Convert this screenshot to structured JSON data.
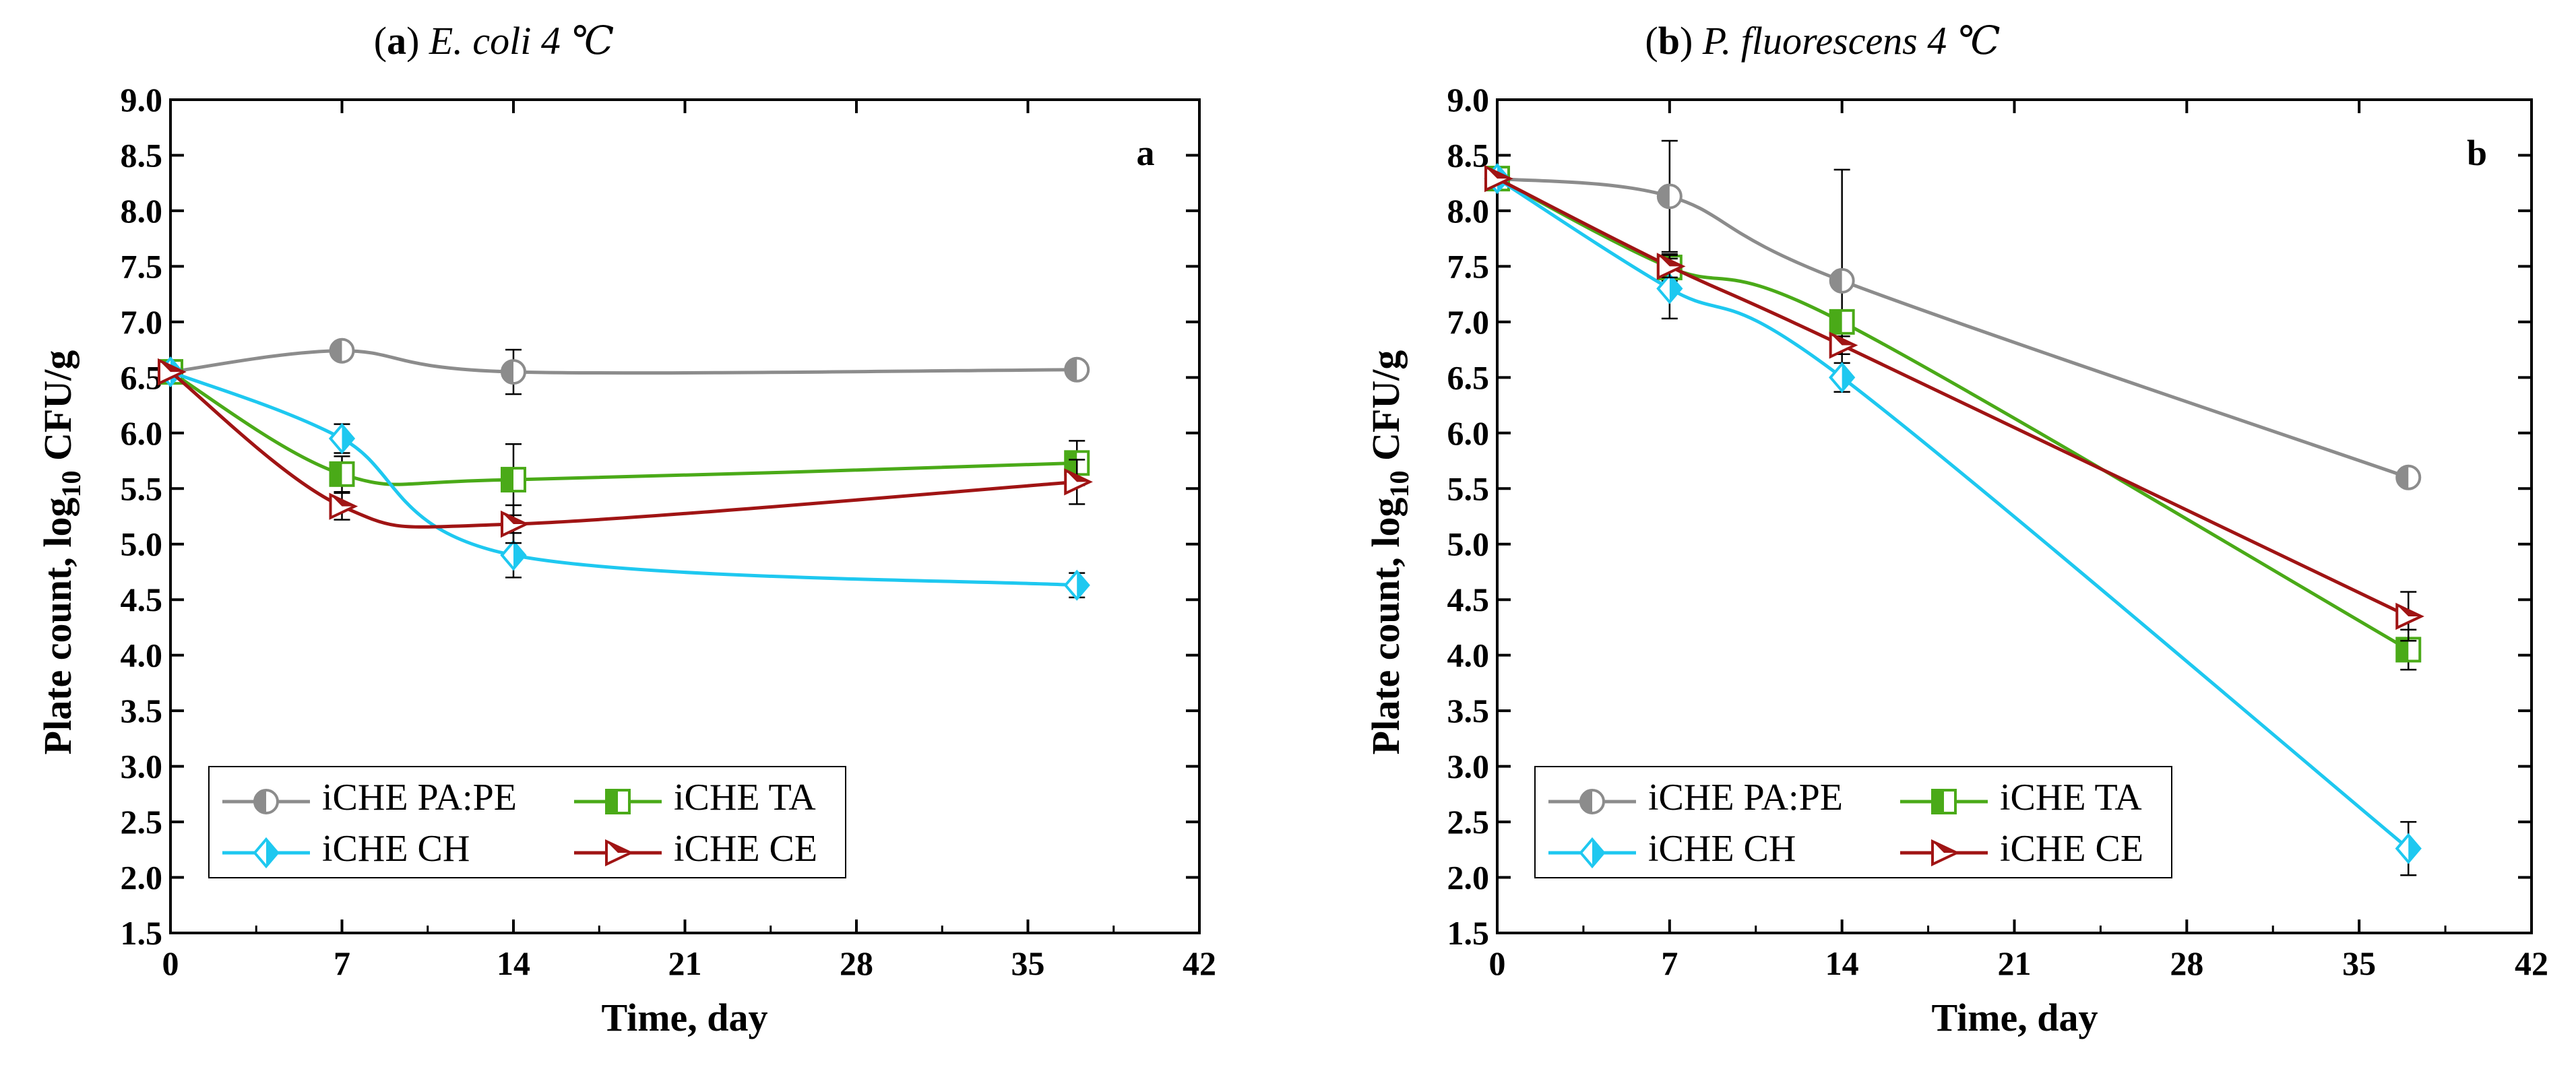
{
  "charts": [
    {
      "title_letter": "a",
      "title_text": "E. coli 4 ℃",
      "panel_label": "a",
      "xlabel": "Time, day",
      "ylabel_main": "Plate count, log",
      "ylabel_sub": "10",
      "ylabel_end": " CFU/g",
      "legend": [
        "iCHE PA:PE",
        "iCHE TA",
        "iCHE CH",
        "iCHE CE"
      ]
    },
    {
      "title_letter": "b",
      "title_text": "P. fluorescens 4 ℃",
      "panel_label": "b",
      "xlabel": "Time, day",
      "ylabel_main": "Plate count, log",
      "ylabel_sub": "10",
      "ylabel_end": " CFU/g",
      "legend": [
        "iCHE PA:PE",
        "iCHE TA",
        "iCHE CH",
        "iCHE CE"
      ]
    }
  ],
  "chart_data": [
    {
      "type": "line",
      "title": "(a) E. coli 4 ℃",
      "xlabel": "Time, day",
      "ylabel": "Plate count, log10 CFU/g",
      "xlim": [
        0,
        42
      ],
      "ylim": [
        1.5,
        9.0
      ],
      "xticks": [
        0,
        7,
        14,
        21,
        28,
        35,
        42
      ],
      "yticks": [
        1.5,
        2.0,
        2.5,
        3.0,
        3.5,
        4.0,
        4.5,
        5.0,
        5.5,
        6.0,
        6.5,
        7.0,
        7.5,
        8.0,
        8.5,
        9.0
      ],
      "grid": false,
      "legend_position": "lower-left",
      "series": [
        {
          "name": "iCHE PA:PE",
          "color": "#8c8c8c",
          "marker": "circle",
          "x": [
            0,
            7,
            14,
            37
          ],
          "y": [
            6.55,
            6.74,
            6.55,
            6.57
          ],
          "err": [
            0.02,
            0.07,
            0.2,
            0.05
          ]
        },
        {
          "name": "iCHE TA",
          "color": "#4aaa18",
          "marker": "square",
          "x": [
            0,
            7,
            14,
            37
          ],
          "y": [
            6.55,
            5.63,
            5.58,
            5.73
          ],
          "err": [
            0.02,
            0.16,
            0.32,
            0.2
          ]
        },
        {
          "name": "iCHE CH",
          "color": "#1ec8f0",
          "marker": "diamond",
          "x": [
            0,
            7,
            14,
            37
          ],
          "y": [
            6.55,
            5.95,
            4.9,
            4.63
          ],
          "err": [
            0.02,
            0.13,
            0.2,
            0.11
          ]
        },
        {
          "name": "iCHE CE",
          "color": "#a01414",
          "marker": "triangle-right",
          "x": [
            0,
            7,
            14,
            37
          ],
          "y": [
            6.55,
            5.34,
            5.18,
            5.56
          ],
          "err": [
            0.02,
            0.12,
            0.17,
            0.2
          ]
        }
      ]
    },
    {
      "type": "line",
      "title": "(b) P. fluorescens 4 ℃",
      "xlabel": "Time, day",
      "ylabel": "Plate count, log10 CFU/g",
      "xlim": [
        0,
        42
      ],
      "ylim": [
        1.5,
        9.0
      ],
      "xticks": [
        0,
        7,
        14,
        21,
        28,
        35,
        42
      ],
      "yticks": [
        1.5,
        2.0,
        2.5,
        3.0,
        3.5,
        4.0,
        4.5,
        5.0,
        5.5,
        6.0,
        6.5,
        7.0,
        7.5,
        8.0,
        8.5,
        9.0
      ],
      "grid": false,
      "legend_position": "lower-left",
      "series": [
        {
          "name": "iCHE PA:PE",
          "color": "#8c8c8c",
          "marker": "circle",
          "x": [
            0,
            7,
            14,
            37
          ],
          "y": [
            8.29,
            8.13,
            7.37,
            5.6
          ],
          "err": [
            0.02,
            0.5,
            1.0,
            0.06
          ]
        },
        {
          "name": "iCHE TA",
          "color": "#4aaa18",
          "marker": "square",
          "x": [
            0,
            7,
            14,
            37
          ],
          "y": [
            8.29,
            7.49,
            7.0,
            4.05
          ],
          "err": [
            0.02,
            0.12,
            0.06,
            0.18
          ]
        },
        {
          "name": "iCHE CH",
          "color": "#1ec8f0",
          "marker": "diamond",
          "x": [
            0,
            7,
            14,
            37
          ],
          "y": [
            8.29,
            7.3,
            6.5,
            2.26
          ],
          "err": [
            0.02,
            0.27,
            0.13,
            0.24
          ]
        },
        {
          "name": "iCHE CE",
          "color": "#a01414",
          "marker": "triangle-right",
          "x": [
            0,
            7,
            14,
            37
          ],
          "y": [
            8.29,
            7.5,
            6.79,
            4.35
          ],
          "err": [
            0.02,
            0.1,
            0.08,
            0.22
          ]
        }
      ]
    }
  ]
}
